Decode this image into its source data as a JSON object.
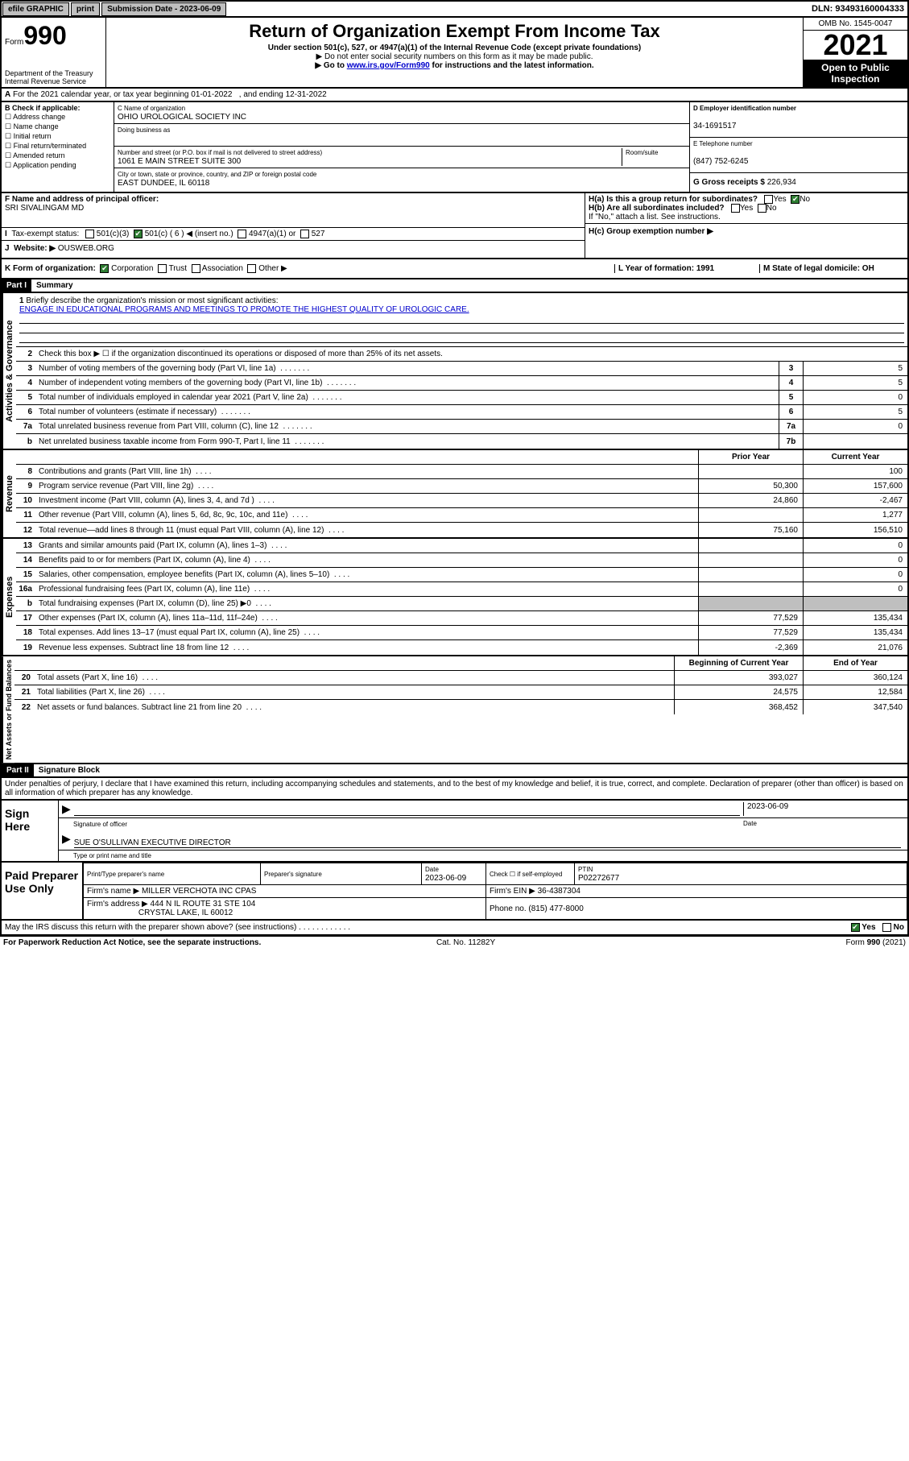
{
  "topbar": {
    "efile": "efile GRAPHIC",
    "print": "print",
    "subdate_label": "Submission Date - 2023-06-09",
    "dln": "DLN: 93493160004333"
  },
  "header": {
    "form_label": "Form",
    "form_num": "990",
    "dept": "Department of the Treasury",
    "irs": "Internal Revenue Service",
    "title": "Return of Organization Exempt From Income Tax",
    "sub1": "Under section 501(c), 527, or 4947(a)(1) of the Internal Revenue Code (except private foundations)",
    "sub2": "▶ Do not enter social security numbers on this form as it may be made public.",
    "sub3_pre": "▶ Go to ",
    "sub3_link": "www.irs.gov/Form990",
    "sub3_post": " for instructions and the latest information.",
    "omb": "OMB No. 1545-0047",
    "year": "2021",
    "open": "Open to Public Inspection"
  },
  "A": {
    "text": "For the 2021 calendar year, or tax year beginning 01-01-2022",
    "text2": ", and ending 12-31-2022"
  },
  "B": {
    "hdr": "B Check if applicable:",
    "opts": [
      "Address change",
      "Name change",
      "Initial return",
      "Final return/terminated",
      "Amended return",
      "Application pending"
    ]
  },
  "C": {
    "name_label": "C Name of organization",
    "name": "OHIO UROLOGICAL SOCIETY INC",
    "dba_label": "Doing business as",
    "addr_label": "Number and street (or P.O. box if mail is not delivered to street address)",
    "room_label": "Room/suite",
    "addr": "1061 E MAIN STREET SUITE 300",
    "city_label": "City or town, state or province, country, and ZIP or foreign postal code",
    "city": "EAST DUNDEE, IL  60118"
  },
  "D": {
    "label": "D Employer identification number",
    "val": "34-1691517"
  },
  "E": {
    "label": "E Telephone number",
    "val": "(847) 752-6245"
  },
  "G": {
    "label": "G Gross receipts $",
    "val": "226,934"
  },
  "F": {
    "label": "F  Name and address of principal officer:",
    "val": "SRI SIVALINGAM MD"
  },
  "H": {
    "a": "H(a)  Is this a group return for subordinates?",
    "b": "H(b)  Are all subordinates included?",
    "b2": "If \"No,\" attach a list. See instructions.",
    "c": "H(c)  Group exemption number ▶",
    "yes": "Yes",
    "no": "No"
  },
  "I": {
    "label": "Tax-exempt status:",
    "opts": [
      "501(c)(3)",
      "501(c) ( 6 ) ◀ (insert no.)",
      "4947(a)(1) or",
      "527"
    ],
    "checked_index": 1
  },
  "J": {
    "label": "Website: ▶",
    "val": "OUSWEB.ORG"
  },
  "K": {
    "label": "K Form of organization:",
    "opts": [
      "Corporation",
      "Trust",
      "Association",
      "Other ▶"
    ],
    "checked_index": 0
  },
  "L": {
    "label": "L Year of formation: 1991"
  },
  "M": {
    "label": "M State of legal domicile: OH"
  },
  "part1": {
    "hdr": "Part I",
    "title": "Summary",
    "l1": "Briefly describe the organization's mission or most significant activities:",
    "mission": "ENGAGE IN EDUCATIONAL PROGRAMS AND MEETINGS TO PROMOTE THE HIGHEST QUALITY OF UROLOGIC CARE.",
    "l2": "Check this box ▶ ☐  if the organization discontinued its operations or disposed of more than 25% of its net assets.",
    "rows_gov": [
      {
        "n": "3",
        "d": "Number of voting members of the governing body (Part VI, line 1a)",
        "b": "3",
        "v": "5"
      },
      {
        "n": "4",
        "d": "Number of independent voting members of the governing body (Part VI, line 1b)",
        "b": "4",
        "v": "5"
      },
      {
        "n": "5",
        "d": "Total number of individuals employed in calendar year 2021 (Part V, line 2a)",
        "b": "5",
        "v": "0"
      },
      {
        "n": "6",
        "d": "Total number of volunteers (estimate if necessary)",
        "b": "6",
        "v": "5"
      },
      {
        "n": "7a",
        "d": "Total unrelated business revenue from Part VIII, column (C), line 12",
        "b": "7a",
        "v": "0"
      },
      {
        "n": "b",
        "d": "Net unrelated business taxable income from Form 990-T, Part I, line 11",
        "b": "7b",
        "v": ""
      }
    ],
    "col_prior": "Prior Year",
    "col_curr": "Current Year",
    "rows_rev": [
      {
        "n": "8",
        "d": "Contributions and grants (Part VIII, line 1h)",
        "p": "",
        "c": "100"
      },
      {
        "n": "9",
        "d": "Program service revenue (Part VIII, line 2g)",
        "p": "50,300",
        "c": "157,600"
      },
      {
        "n": "10",
        "d": "Investment income (Part VIII, column (A), lines 3, 4, and 7d )",
        "p": "24,860",
        "c": "-2,467"
      },
      {
        "n": "11",
        "d": "Other revenue (Part VIII, column (A), lines 5, 6d, 8c, 9c, 10c, and 11e)",
        "p": "",
        "c": "1,277"
      },
      {
        "n": "12",
        "d": "Total revenue—add lines 8 through 11 (must equal Part VIII, column (A), line 12)",
        "p": "75,160",
        "c": "156,510"
      }
    ],
    "rows_exp": [
      {
        "n": "13",
        "d": "Grants and similar amounts paid (Part IX, column (A), lines 1–3)",
        "p": "",
        "c": "0"
      },
      {
        "n": "14",
        "d": "Benefits paid to or for members (Part IX, column (A), line 4)",
        "p": "",
        "c": "0"
      },
      {
        "n": "15",
        "d": "Salaries, other compensation, employee benefits (Part IX, column (A), lines 5–10)",
        "p": "",
        "c": "0"
      },
      {
        "n": "16a",
        "d": "Professional fundraising fees (Part IX, column (A), line 11e)",
        "p": "",
        "c": "0"
      },
      {
        "n": "b",
        "d": "Total fundraising expenses (Part IX, column (D), line 25) ▶0",
        "p": "shade",
        "c": "shade"
      },
      {
        "n": "17",
        "d": "Other expenses (Part IX, column (A), lines 11a–11d, 11f–24e)",
        "p": "77,529",
        "c": "135,434"
      },
      {
        "n": "18",
        "d": "Total expenses. Add lines 13–17 (must equal Part IX, column (A), line 25)",
        "p": "77,529",
        "c": "135,434"
      },
      {
        "n": "19",
        "d": "Revenue less expenses. Subtract line 18 from line 12",
        "p": "-2,369",
        "c": "21,076"
      }
    ],
    "col_beg": "Beginning of Current Year",
    "col_end": "End of Year",
    "rows_net": [
      {
        "n": "20",
        "d": "Total assets (Part X, line 16)",
        "p": "393,027",
        "c": "360,124"
      },
      {
        "n": "21",
        "d": "Total liabilities (Part X, line 26)",
        "p": "24,575",
        "c": "12,584"
      },
      {
        "n": "22",
        "d": "Net assets or fund balances. Subtract line 21 from line 20",
        "p": "368,452",
        "c": "347,540"
      }
    ]
  },
  "part2": {
    "hdr": "Part II",
    "title": "Signature Block",
    "decl": "Under penalties of perjury, I declare that I have examined this return, including accompanying schedules and statements, and to the best of my knowledge and belief, it is true, correct, and complete. Declaration of preparer (other than officer) is based on all information of which preparer has any knowledge."
  },
  "sign": {
    "here": "Sign Here",
    "sig_label": "Signature of officer",
    "date_label": "Date",
    "date": "2023-06-09",
    "name": "SUE O'SULLIVAN  EXECUTIVE DIRECTOR",
    "name_label": "Type or print name and title"
  },
  "paid": {
    "hdr": "Paid Preparer Use Only",
    "cols": [
      "Print/Type preparer's name",
      "Preparer's signature",
      "Date",
      "",
      "PTIN"
    ],
    "date": "2023-06-09",
    "check_label": "Check ☐ if self-employed",
    "ptin": "P02272677",
    "firm_name_label": "Firm's name    ▶",
    "firm_name": "MILLER VERCHOTA INC CPAS",
    "firm_ein_label": "Firm's EIN ▶",
    "firm_ein": "36-4387304",
    "firm_addr_label": "Firm's address ▶",
    "firm_addr": "444 N IL ROUTE 31 STE 104",
    "firm_city": "CRYSTAL LAKE, IL  60012",
    "phone_label": "Phone no.",
    "phone": "(815) 477-8000"
  },
  "bottom": {
    "q": "May the IRS discuss this return with the preparer shown above? (see instructions)",
    "yes": "Yes",
    "no": "No",
    "pra": "For Paperwork Reduction Act Notice, see the separate instructions.",
    "cat": "Cat. No. 11282Y",
    "form": "Form 990 (2021)"
  },
  "vlabels": {
    "gov": "Activities & Governance",
    "rev": "Revenue",
    "exp": "Expenses",
    "net": "Net Assets or Fund Balances"
  }
}
